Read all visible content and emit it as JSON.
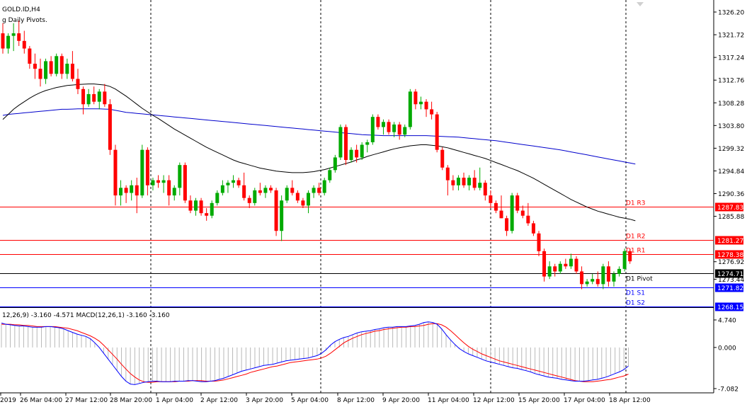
{
  "header": {
    "symbol_line": "GOLD.ID,H4",
    "indicator_line": "g Daily Pivots."
  },
  "chart_data": {
    "type": "candlestick",
    "symbol": "GOLD.ID",
    "timeframe": "H4",
    "ylim": [
      1268.15,
      1326.2
    ],
    "price_ticks": [
      "1326.20",
      "1321.72",
      "1317.24",
      "1312.76",
      "1308.28",
      "1303.80",
      "1299.32",
      "1294.84",
      "1290.36",
      "1285.88",
      "1276.92",
      "1273.44"
    ],
    "x_labels": [
      "2019",
      "26 Mar 04:00",
      "27 Mar 12:00",
      "28 Mar 20:00",
      "1 Apr 04:00",
      "2 Apr 12:00",
      "3 Apr 20:00",
      "5 Apr 04:00",
      "8 Apr 12:00",
      "9 Apr 20:00",
      "11 Apr 04:00",
      "12 Apr 12:00",
      "15 Apr 20:00",
      "17 Apr 04:00",
      "18 Apr 12:00"
    ],
    "pivot_levels": [
      {
        "name": "D1 R3",
        "value": 1287.83,
        "label": "1287.83",
        "color": "#ff0000"
      },
      {
        "name": "D1 R2",
        "value": 1281.27,
        "label": "1281.27",
        "color": "#ff0000"
      },
      {
        "name": "D1 R1",
        "value": 1278.38,
        "label": "1278.38",
        "color": "#ff0000"
      },
      {
        "name": "D1 Pivot",
        "value": 1274.71,
        "label": "1274.71",
        "color": "#000000"
      },
      {
        "name": "D1 S1",
        "value": 1271.82,
        "label": "1271.82",
        "color": "#0000ff"
      },
      {
        "name": "D1 S2",
        "value": 1268.15,
        "label": "1268.15",
        "color": "#0000ff"
      }
    ],
    "bull_color": "#00aa00",
    "bear_color": "#ff0000",
    "candles": [
      [
        1322.0,
        1324.0,
        1318.0,
        1319.0
      ],
      [
        1319.0,
        1322.0,
        1318.0,
        1321.5
      ],
      [
        1321.5,
        1324.0,
        1318.5,
        1322.0
      ],
      [
        1322.0,
        1324.5,
        1319.5,
        1320.5
      ],
      [
        1320.5,
        1322.5,
        1318.0,
        1319.0
      ],
      [
        1319.0,
        1319.5,
        1315.0,
        1316.0
      ],
      [
        1316.0,
        1318.0,
        1313.0,
        1315.0
      ],
      [
        1315.0,
        1317.0,
        1311.5,
        1313.0
      ],
      [
        1313.0,
        1317.0,
        1312.0,
        1316.5
      ],
      [
        1316.5,
        1317.5,
        1313.5,
        1314.0
      ],
      [
        1314.0,
        1318.0,
        1313.5,
        1317.5
      ],
      [
        1317.5,
        1318.0,
        1313.0,
        1314.0
      ],
      [
        1314.0,
        1317.0,
        1313.0,
        1316.0
      ],
      [
        1316.0,
        1318.5,
        1312.5,
        1313.0
      ],
      [
        1313.0,
        1315.0,
        1310.0,
        1311.0
      ],
      [
        1311.0,
        1311.5,
        1306.0,
        1308.0
      ],
      [
        1308.0,
        1311.0,
        1307.5,
        1310.0
      ],
      [
        1310.0,
        1311.5,
        1308.0,
        1308.5
      ],
      [
        1308.5,
        1311.0,
        1307.0,
        1310.5
      ],
      [
        1310.5,
        1312.0,
        1307.5,
        1308.0
      ],
      [
        1308.0,
        1309.0,
        1298.0,
        1299.0
      ],
      [
        1299.0,
        1300.0,
        1288.0,
        1290.0
      ],
      [
        1290.0,
        1293.0,
        1288.0,
        1291.5
      ],
      [
        1291.5,
        1292.0,
        1288.5,
        1290.5
      ],
      [
        1290.5,
        1293.0,
        1289.0,
        1292.0
      ],
      [
        1292.0,
        1293.5,
        1286.5,
        1290.0
      ],
      [
        1290.0,
        1300.0,
        1289.5,
        1299.0
      ],
      [
        1299.0,
        1299.5,
        1290.0,
        1292.0
      ],
      [
        1292.0,
        1293.5,
        1291.0,
        1293.0
      ],
      [
        1293.0,
        1294.0,
        1291.5,
        1292.5
      ],
      [
        1292.5,
        1294.0,
        1290.5,
        1293.0
      ],
      [
        1293.0,
        1294.0,
        1288.0,
        1290.0
      ],
      [
        1290.0,
        1292.0,
        1289.0,
        1291.5
      ],
      [
        1291.5,
        1296.5,
        1290.0,
        1296.0
      ],
      [
        1296.0,
        1296.5,
        1288.5,
        1289.0
      ],
      [
        1289.0,
        1290.0,
        1286.5,
        1287.0
      ],
      [
        1287.0,
        1289.5,
        1286.0,
        1289.0
      ],
      [
        1289.0,
        1289.5,
        1286.0,
        1286.5
      ],
      [
        1286.5,
        1287.5,
        1285.0,
        1286.0
      ],
      [
        1286.0,
        1289.0,
        1285.5,
        1288.5
      ],
      [
        1288.5,
        1291.0,
        1288.0,
        1290.5
      ],
      [
        1290.5,
        1293.0,
        1290.0,
        1292.0
      ],
      [
        1292.0,
        1293.0,
        1290.5,
        1292.5
      ],
      [
        1292.5,
        1294.0,
        1291.5,
        1293.0
      ],
      [
        1293.0,
        1293.5,
        1291.5,
        1292.0
      ],
      [
        1292.0,
        1294.5,
        1289.0,
        1289.5
      ],
      [
        1289.5,
        1290.0,
        1287.5,
        1288.5
      ],
      [
        1288.5,
        1291.5,
        1288.0,
        1291.0
      ],
      [
        1291.0,
        1292.5,
        1290.0,
        1290.5
      ],
      [
        1290.5,
        1292.0,
        1289.5,
        1291.5
      ],
      [
        1291.5,
        1292.0,
        1290.5,
        1291.0
      ],
      [
        1291.0,
        1291.5,
        1282.0,
        1283.0
      ],
      [
        1283.0,
        1290.0,
        1281.0,
        1289.0
      ],
      [
        1289.0,
        1292.0,
        1288.5,
        1291.5
      ],
      [
        1291.5,
        1293.0,
        1290.0,
        1290.5
      ],
      [
        1290.5,
        1291.0,
        1288.5,
        1289.0
      ],
      [
        1289.0,
        1289.5,
        1287.5,
        1288.0
      ],
      [
        1288.0,
        1291.0,
        1286.5,
        1290.5
      ],
      [
        1290.5,
        1292.0,
        1289.5,
        1291.5
      ],
      [
        1291.5,
        1292.5,
        1290.0,
        1290.5
      ],
      [
        1290.5,
        1293.5,
        1290.0,
        1293.0
      ],
      [
        1293.0,
        1295.5,
        1292.5,
        1295.0
      ],
      [
        1295.0,
        1298.0,
        1294.5,
        1297.5
      ],
      [
        1297.5,
        1304.0,
        1297.0,
        1303.5
      ],
      [
        1303.5,
        1304.0,
        1296.0,
        1297.0
      ],
      [
        1297.0,
        1299.5,
        1296.5,
        1299.0
      ],
      [
        1299.0,
        1300.0,
        1296.5,
        1297.5
      ],
      [
        1297.5,
        1300.5,
        1297.0,
        1300.0
      ],
      [
        1300.0,
        1301.0,
        1298.5,
        1300.5
      ],
      [
        1300.5,
        1306.0,
        1300.0,
        1305.5
      ],
      [
        1305.5,
        1306.0,
        1303.0,
        1303.5
      ],
      [
        1303.5,
        1305.0,
        1302.0,
        1304.5
      ],
      [
        1304.5,
        1305.0,
        1302.0,
        1302.5
      ],
      [
        1302.5,
        1304.5,
        1301.5,
        1304.0
      ],
      [
        1304.0,
        1304.5,
        1301.0,
        1302.0
      ],
      [
        1302.0,
        1304.0,
        1301.5,
        1303.5
      ],
      [
        1303.5,
        1311.0,
        1303.0,
        1310.5
      ],
      [
        1310.5,
        1311.0,
        1307.0,
        1308.0
      ],
      [
        1308.0,
        1309.5,
        1307.0,
        1308.5
      ],
      [
        1308.5,
        1309.0,
        1305.5,
        1307.0
      ],
      [
        1307.0,
        1308.5,
        1305.0,
        1306.0
      ],
      [
        1306.0,
        1306.5,
        1298.5,
        1299.0
      ],
      [
        1299.0,
        1299.5,
        1295.0,
        1295.5
      ],
      [
        1295.5,
        1296.0,
        1290.0,
        1293.0
      ],
      [
        1293.0,
        1294.0,
        1291.0,
        1292.0
      ],
      [
        1292.0,
        1294.0,
        1291.0,
        1293.5
      ],
      [
        1293.5,
        1294.5,
        1291.5,
        1292.0
      ],
      [
        1292.0,
        1294.0,
        1291.0,
        1293.5
      ],
      [
        1293.5,
        1295.0,
        1291.0,
        1291.5
      ],
      [
        1291.5,
        1295.5,
        1291.0,
        1292.5
      ],
      [
        1292.5,
        1293.0,
        1289.0,
        1290.0
      ],
      [
        1290.0,
        1291.0,
        1287.5,
        1288.5
      ],
      [
        1288.5,
        1289.0,
        1286.5,
        1287.0
      ],
      [
        1287.0,
        1290.0,
        1285.5,
        1285.5
      ],
      [
        1285.5,
        1286.0,
        1282.0,
        1283.0
      ],
      [
        1283.0,
        1290.5,
        1282.5,
        1290.0
      ],
      [
        1290.0,
        1290.5,
        1286.5,
        1287.0
      ],
      [
        1287.0,
        1288.0,
        1285.5,
        1286.0
      ],
      [
        1286.0,
        1288.5,
        1284.0,
        1284.5
      ],
      [
        1284.5,
        1285.0,
        1282.0,
        1282.5
      ],
      [
        1282.5,
        1283.0,
        1278.0,
        1279.0
      ],
      [
        1279.0,
        1279.5,
        1273.0,
        1274.0
      ],
      [
        1274.0,
        1277.0,
        1273.5,
        1276.0
      ],
      [
        1276.0,
        1276.5,
        1274.0,
        1275.0
      ],
      [
        1275.0,
        1277.0,
        1274.5,
        1276.5
      ],
      [
        1276.5,
        1277.5,
        1275.5,
        1276.0
      ],
      [
        1276.0,
        1278.5,
        1275.5,
        1277.5
      ],
      [
        1277.5,
        1278.0,
        1274.5,
        1275.0
      ],
      [
        1275.0,
        1276.0,
        1271.5,
        1272.5
      ],
      [
        1272.5,
        1273.5,
        1272.0,
        1273.0
      ],
      [
        1273.0,
        1274.5,
        1272.5,
        1273.5
      ],
      [
        1273.5,
        1275.0,
        1272.0,
        1272.5
      ],
      [
        1272.5,
        1276.5,
        1271.5,
        1276.0
      ],
      [
        1276.0,
        1277.0,
        1272.0,
        1273.0
      ],
      [
        1273.0,
        1275.0,
        1272.0,
        1274.5
      ],
      [
        1274.5,
        1276.0,
        1274.0,
        1275.5
      ],
      [
        1275.5,
        1279.5,
        1275.0,
        1279.0
      ],
      [
        1279.0,
        1279.5,
        1276.5,
        1277.0
      ]
    ],
    "ma_fast_color": "#000000",
    "ma_slow_color": "#0000cc",
    "ma_fast": [
      1305.0,
      1306.0,
      1307.0,
      1307.8,
      1308.5,
      1309.2,
      1309.8,
      1310.3,
      1310.7,
      1311.0,
      1311.3,
      1311.5,
      1311.7,
      1311.8,
      1311.9,
      1311.95,
      1312.0,
      1312.0,
      1311.9,
      1311.8,
      1311.5,
      1311.0,
      1310.3,
      1309.6,
      1308.8,
      1308.0,
      1307.2,
      1306.5,
      1305.8,
      1305.2,
      1304.5,
      1303.8,
      1303.1,
      1302.5,
      1301.9,
      1301.3,
      1300.7,
      1300.1,
      1299.5,
      1299.0,
      1298.5,
      1298.0,
      1297.5,
      1297.0,
      1296.6,
      1296.3,
      1296.0,
      1295.7,
      1295.4,
      1295.2,
      1295.0,
      1294.8,
      1294.7,
      1294.6,
      1294.5,
      1294.5,
      1294.5,
      1294.6,
      1294.7,
      1294.9,
      1295.1,
      1295.4,
      1295.7,
      1296.0,
      1296.3,
      1296.6,
      1297.0,
      1297.3,
      1297.7,
      1298.0,
      1298.3,
      1298.6,
      1298.9,
      1299.2,
      1299.4,
      1299.6,
      1299.8,
      1299.9,
      1300.0,
      1300.0,
      1299.9,
      1299.8,
      1299.6,
      1299.4,
      1299.1,
      1298.8,
      1298.5,
      1298.2,
      1297.9,
      1297.6,
      1297.3,
      1296.9,
      1296.5,
      1296.1,
      1295.7,
      1295.3,
      1294.9,
      1294.4,
      1293.9,
      1293.4,
      1292.8,
      1292.2,
      1291.6,
      1291.0,
      1290.4,
      1289.8,
      1289.2,
      1288.7,
      1288.2,
      1287.7,
      1287.3,
      1286.9,
      1286.6,
      1286.3,
      1286.0,
      1285.7,
      1285.5,
      1285.3,
      1285.0
    ],
    "ma_slow": [
      1305.8,
      1306.0,
      1306.1,
      1306.2,
      1306.3,
      1306.4,
      1306.5,
      1306.6,
      1306.7,
      1306.8,
      1306.9,
      1307.0,
      1307.0,
      1307.05,
      1307.1,
      1307.1,
      1307.1,
      1307.1,
      1307.1,
      1307.05,
      1307.0,
      1306.8,
      1306.6,
      1306.4,
      1306.3,
      1306.2,
      1306.1,
      1306.0,
      1305.9,
      1305.8,
      1305.7,
      1305.6,
      1305.5,
      1305.4,
      1305.3,
      1305.2,
      1305.1,
      1305.0,
      1304.9,
      1304.8,
      1304.7,
      1304.6,
      1304.5,
      1304.4,
      1304.3,
      1304.2,
      1304.1,
      1304.0,
      1303.9,
      1303.8,
      1303.7,
      1303.6,
      1303.5,
      1303.4,
      1303.3,
      1303.2,
      1303.1,
      1303.0,
      1302.9,
      1302.8,
      1302.7,
      1302.6,
      1302.5,
      1302.4,
      1302.3,
      1302.2,
      1302.1,
      1302.0,
      1301.95,
      1301.9,
      1301.85,
      1301.8,
      1301.8,
      1301.8,
      1301.8,
      1301.8,
      1301.8,
      1301.8,
      1301.8,
      1301.8,
      1301.75,
      1301.7,
      1301.65,
      1301.6,
      1301.55,
      1301.5,
      1301.4,
      1301.3,
      1301.2,
      1301.1,
      1301.0,
      1300.9,
      1300.8,
      1300.65,
      1300.5,
      1300.35,
      1300.2,
      1300.05,
      1299.9,
      1299.75,
      1299.6,
      1299.45,
      1299.3,
      1299.15,
      1299.0,
      1298.8,
      1298.6,
      1298.4,
      1298.2,
      1298.0,
      1297.8,
      1297.6,
      1297.4,
      1297.2,
      1297.0,
      1296.8,
      1296.6,
      1296.4,
      1296.2
    ]
  },
  "macd": {
    "label": "12,26,9) -3.160 -4.571 MACD(12,26,1) -3.160 -3.160",
    "ticks": [
      "4.740",
      "0.000",
      "-7.082"
    ],
    "ylim": [
      -7.082,
      4.74
    ],
    "main_color": "#0000ff",
    "signal_color": "#ff0000",
    "main": [
      4.2,
      4.0,
      3.9,
      3.8,
      3.7,
      3.7,
      3.6,
      3.5,
      3.5,
      3.5,
      3.6,
      3.6,
      3.5,
      3.4,
      3.2,
      2.9,
      2.6,
      2.3,
      2.1,
      1.9,
      1.5,
      0.8,
      0.0,
      -1.0,
      -2.0,
      -3.0,
      -4.0,
      -5.0,
      -5.8,
      -6.3,
      -6.4,
      -6.2,
      -6.0,
      -5.9,
      -5.8,
      -5.8,
      -5.9,
      -5.9,
      -5.9,
      -5.8,
      -5.8,
      -5.8,
      -5.7,
      -5.7,
      -5.8,
      -5.9,
      -5.9,
      -5.8,
      -5.7,
      -5.5,
      -5.3,
      -5.0,
      -4.7,
      -4.4,
      -4.1,
      -3.9,
      -3.7,
      -3.5,
      -3.3,
      -3.1,
      -3.0,
      -2.9,
      -2.7,
      -2.5,
      -2.3,
      -2.2,
      -2.1,
      -2.0,
      -1.9,
      -1.8,
      -1.6,
      -1.4,
      -1.0,
      -0.4,
      0.4,
      1.0,
      1.4,
      1.7,
      1.9,
      2.2,
      2.5,
      2.7,
      2.8,
      2.9,
      3.1,
      3.2,
      3.4,
      3.5,
      3.5,
      3.6,
      3.6,
      3.6,
      3.7,
      3.8,
      4.0,
      4.3,
      4.4,
      4.3,
      4.0,
      3.2,
      2.2,
      1.3,
      0.5,
      -0.2,
      -0.7,
      -1.1,
      -1.4,
      -1.7,
      -2.0,
      -2.3,
      -2.5,
      -2.7,
      -2.9,
      -3.1,
      -3.3,
      -3.5,
      -3.6,
      -3.8,
      -4.0,
      -4.2,
      -4.5,
      -4.7,
      -4.9,
      -5.1,
      -5.2,
      -5.3,
      -5.5,
      -5.6,
      -5.7,
      -5.8,
      -5.8,
      -5.8,
      -5.7,
      -5.6,
      -5.5,
      -5.3,
      -5.1,
      -4.8,
      -4.5,
      -4.2,
      -3.8,
      -3.2
    ],
    "signal": [
      4.0,
      4.0,
      4.0,
      3.9,
      3.9,
      3.8,
      3.8,
      3.7,
      3.6,
      3.6,
      3.6,
      3.6,
      3.6,
      3.5,
      3.4,
      3.3,
      3.1,
      2.9,
      2.6,
      2.3,
      2.0,
      1.6,
      1.1,
      0.4,
      -0.4,
      -1.2,
      -2.0,
      -2.9,
      -3.7,
      -4.5,
      -5.1,
      -5.6,
      -5.9,
      -6.0,
      -6.0,
      -5.9,
      -5.9,
      -5.9,
      -5.9,
      -5.9,
      -5.8,
      -5.8,
      -5.8,
      -5.7,
      -5.7,
      -5.7,
      -5.8,
      -5.8,
      -5.8,
      -5.7,
      -5.6,
      -5.4,
      -5.2,
      -5.0,
      -4.8,
      -4.6,
      -4.3,
      -4.1,
      -3.9,
      -3.7,
      -3.5,
      -3.3,
      -3.2,
      -3.0,
      -2.8,
      -2.6,
      -2.5,
      -2.4,
      -2.3,
      -2.2,
      -2.1,
      -2.0,
      -1.8,
      -1.5,
      -1.0,
      -0.4,
      0.2,
      0.8,
      1.2,
      1.6,
      1.9,
      2.2,
      2.4,
      2.6,
      2.8,
      2.9,
      3.1,
      3.2,
      3.3,
      3.4,
      3.5,
      3.5,
      3.6,
      3.6,
      3.7,
      3.8,
      4.0,
      4.1,
      4.1,
      3.9,
      3.5,
      2.9,
      2.2,
      1.5,
      0.8,
      0.2,
      -0.3,
      -0.7,
      -1.1,
      -1.4,
      -1.7,
      -2.0,
      -2.3,
      -2.5,
      -2.7,
      -2.9,
      -3.1,
      -3.3,
      -3.5,
      -3.7,
      -3.9,
      -4.1,
      -4.3,
      -4.5,
      -4.7,
      -4.9,
      -5.1,
      -5.3,
      -5.5,
      -5.7,
      -5.8,
      -5.9,
      -5.9,
      -5.9,
      -5.8,
      -5.7,
      -5.6,
      -5.5,
      -5.3,
      -5.1,
      -4.9,
      -4.6
    ],
    "hist": [
      4.0,
      4.1,
      3.9,
      3.8,
      3.7,
      3.7,
      3.6,
      3.5,
      3.5,
      3.5,
      3.6,
      3.6,
      3.5,
      3.4,
      3.2,
      2.9,
      2.6,
      2.3,
      2.1,
      1.9,
      1.5,
      0.8,
      0.0,
      -1.0,
      -2.0,
      -3.0,
      -4.0,
      -5.0,
      -5.8,
      -6.3,
      -6.4,
      -6.2,
      -6.0,
      -5.9,
      -5.8,
      -5.8,
      -5.9,
      -5.9,
      -5.9,
      -5.8,
      -5.8,
      -5.8,
      -5.7,
      -5.7,
      -5.8,
      -5.9,
      -5.9,
      -5.8,
      -5.7,
      -5.5,
      -5.3,
      -5.0,
      -4.7,
      -4.4,
      -4.1,
      -3.9,
      -3.7,
      -3.5,
      -3.3,
      -3.1,
      -3.0,
      -2.9,
      -2.7,
      -2.5,
      -2.3,
      -2.2,
      -2.1,
      -2.0,
      -1.9,
      -1.8,
      -1.6,
      -1.4,
      -1.0,
      -0.4,
      0.4,
      1.0,
      1.4,
      1.7,
      1.9,
      2.2,
      2.5,
      2.7,
      2.8,
      2.9,
      3.1,
      3.2,
      3.4,
      3.5,
      3.5,
      3.6,
      3.6,
      3.6,
      3.7,
      3.8,
      4.0,
      4.3,
      4.4,
      4.3,
      4.0,
      3.2,
      2.2,
      1.3,
      0.5,
      -0.2,
      -0.7,
      -1.1,
      -1.4,
      -1.7,
      -2.0,
      -2.3,
      -2.5,
      -2.7,
      -2.9,
      -3.1,
      -3.3,
      -3.5,
      -3.6,
      -3.8,
      -4.0,
      -4.2,
      -4.5,
      -4.7,
      -4.9,
      -5.1,
      -5.2,
      -5.3,
      -5.5,
      -5.6,
      -5.7,
      -5.8,
      -5.8,
      -5.8,
      -5.7,
      -5.6,
      -5.5,
      -5.3,
      -5.1,
      -4.8,
      -4.5,
      -4.2,
      -3.8,
      -3.2
    ]
  }
}
